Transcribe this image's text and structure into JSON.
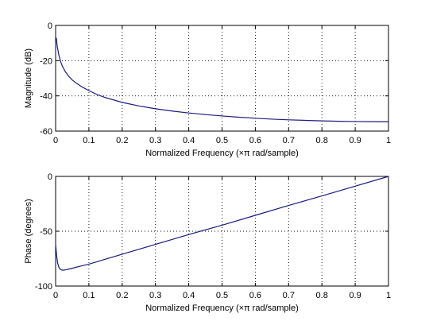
{
  "chart_data": [
    {
      "type": "line",
      "xlabel": "Normalized Frequency  (×π rad/sample)",
      "ylabel": "Magnitude (dB)",
      "xlim": [
        0,
        1
      ],
      "ylim": [
        -60,
        0
      ],
      "xticks": [
        "0",
        "0.1",
        "0.2",
        "0.3",
        "0.4",
        "0.5",
        "0.6",
        "0.7",
        "0.8",
        "0.9",
        "1"
      ],
      "yticks": [
        "0",
        "-20",
        "-40",
        "-60"
      ],
      "grid": true,
      "series": [
        {
          "color": "#1a1a80",
          "x": [
            0.002,
            0.005,
            0.01,
            0.015,
            0.02,
            0.03,
            0.04,
            0.05,
            0.06,
            0.08,
            0.1,
            0.125,
            0.15,
            0.2,
            0.25,
            0.3,
            0.35,
            0.4,
            0.45,
            0.5,
            0.55,
            0.6,
            0.65,
            0.7,
            0.75,
            0.8,
            0.85,
            0.9,
            0.95,
            1.0
          ],
          "y": [
            -7,
            -12,
            -17,
            -20.5,
            -23,
            -26.5,
            -29,
            -31,
            -32.5,
            -35,
            -37,
            -39.3,
            -41,
            -43.7,
            -45.7,
            -47.3,
            -48.6,
            -49.7,
            -50.6,
            -51.4,
            -52.1,
            -52.7,
            -53.2,
            -53.6,
            -53.9,
            -54.2,
            -54.4,
            -54.55,
            -54.65,
            -54.7
          ]
        }
      ]
    },
    {
      "type": "line",
      "xlabel": "Normalized Frequency  (×π rad/sample)",
      "ylabel": "Phase (degrees)",
      "xlim": [
        0,
        1
      ],
      "ylim": [
        -100,
        0
      ],
      "xticks": [
        "0",
        "0.1",
        "0.2",
        "0.3",
        "0.4",
        "0.5",
        "0.6",
        "0.7",
        "0.8",
        "0.9",
        "1"
      ],
      "yticks": [
        "0",
        "-50",
        "-100"
      ],
      "grid": true,
      "series": [
        {
          "color": "#1a1a80",
          "x": [
            0.0,
            0.003,
            0.006,
            0.01,
            0.015,
            0.02,
            0.025,
            0.03,
            0.04,
            0.05,
            0.07,
            0.1,
            0.2,
            0.3,
            0.4,
            0.5,
            0.6,
            0.7,
            0.8,
            0.9,
            1.0
          ],
          "y": [
            -62,
            -72,
            -79,
            -83,
            -85,
            -85.5,
            -85.5,
            -85.2,
            -84.5,
            -83.8,
            -82.2,
            -80,
            -71,
            -62,
            -53,
            -44.5,
            -35.5,
            -26.5,
            -17.8,
            -8.9,
            0
          ]
        }
      ]
    }
  ]
}
